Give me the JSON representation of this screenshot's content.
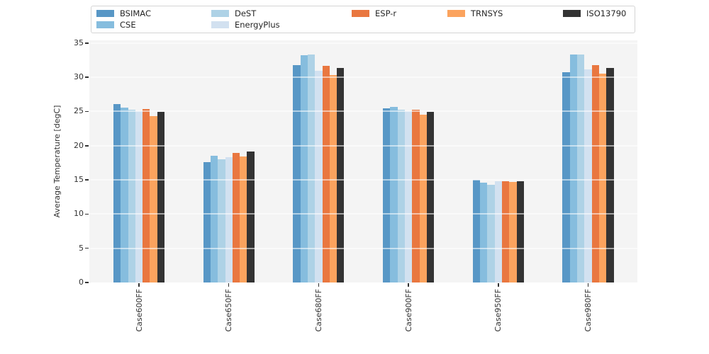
{
  "chart_data": {
    "type": "bar",
    "title": "",
    "xlabel": "",
    "ylabel": "Average Temperature [degC]",
    "categories": [
      "Case600FF",
      "Case650FF",
      "Case680FF",
      "Case900FF",
      "Case950FF",
      "Case980FF"
    ],
    "series": [
      {
        "name": "BSIMAC",
        "color": "#5897c6",
        "values": [
          26.1,
          17.6,
          31.8,
          25.5,
          15.0,
          30.7
        ]
      },
      {
        "name": "CSE",
        "color": "#86bdde",
        "values": [
          25.6,
          18.5,
          33.2,
          25.7,
          14.6,
          33.3
        ]
      },
      {
        "name": "DeST",
        "color": "#aed2e6",
        "values": [
          25.3,
          18.0,
          33.3,
          25.3,
          14.3,
          33.3
        ]
      },
      {
        "name": "EnergyPlus",
        "color": "#d2e1f0",
        "values": [
          25.0,
          18.3,
          31.0,
          25.1,
          14.8,
          31.2
        ]
      },
      {
        "name": "ESP-r",
        "color": "#e97740",
        "values": [
          25.4,
          18.9,
          31.7,
          25.3,
          14.8,
          31.8
        ]
      },
      {
        "name": "TRNSYS",
        "color": "#fba35e",
        "values": [
          24.3,
          18.4,
          30.3,
          24.5,
          14.7,
          30.5
        ]
      },
      {
        "name": "ISO13790",
        "color": "#333333",
        "values": [
          24.9,
          19.1,
          31.4,
          24.9,
          14.8,
          31.4
        ]
      }
    ],
    "yticks": [
      0,
      5,
      10,
      15,
      20,
      25,
      30,
      35
    ],
    "ylim": [
      0,
      35.4
    ],
    "grid": true,
    "legend_position": "top",
    "plot_background": "#f4f4f4",
    "xtick_rotation": 90
  }
}
